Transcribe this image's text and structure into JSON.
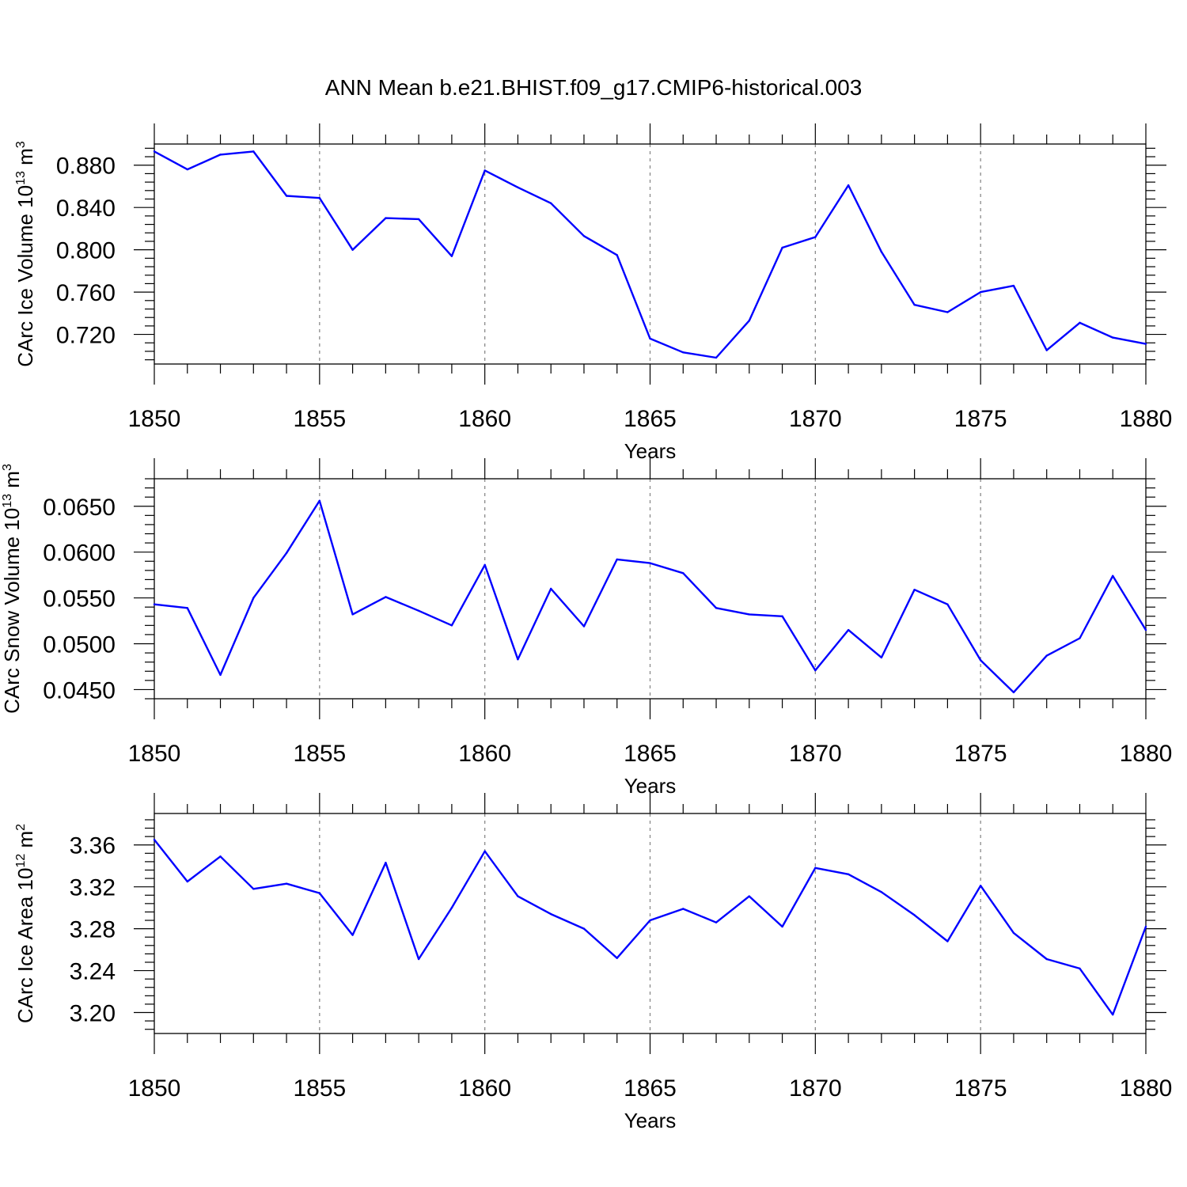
{
  "figure": {
    "title": "ANN Mean b.e21.BHIST.f09_g17.CMIP6-historical.003"
  },
  "chart_data": [
    {
      "type": "line",
      "xlabel": "Years",
      "ylabel": {
        "text": "CArc Ice Volume 10",
        "exponent": "13",
        "unit": " m",
        "unit_exponent": "3"
      },
      "xlim": [
        1850,
        1880
      ],
      "ylim": [
        0.692,
        0.9
      ],
      "x_ticks": [
        1850,
        1855,
        1860,
        1865,
        1870,
        1875,
        1880
      ],
      "y_ticks": [
        "0.720",
        "0.760",
        "0.800",
        "0.840",
        "0.880"
      ],
      "y_tick_values": [
        0.72,
        0.76,
        0.8,
        0.84,
        0.88
      ],
      "y_minor_step": 0.008,
      "line_color": "#0000ff",
      "grid": "dashed vertical lines at major x ticks",
      "x": [
        1850,
        1851,
        1852,
        1853,
        1854,
        1855,
        1856,
        1857,
        1858,
        1859,
        1860,
        1861,
        1862,
        1863,
        1864,
        1865,
        1866,
        1867,
        1868,
        1869,
        1870,
        1871,
        1872,
        1873,
        1874,
        1875,
        1876,
        1877,
        1878,
        1879,
        1880
      ],
      "values": [
        0.893,
        0.876,
        0.89,
        0.893,
        0.851,
        0.849,
        0.8,
        0.83,
        0.829,
        0.794,
        0.875,
        0.859,
        0.844,
        0.813,
        0.795,
        0.716,
        0.703,
        0.698,
        0.733,
        0.802,
        0.812,
        0.861,
        0.798,
        0.748,
        0.741,
        0.76,
        0.766,
        0.705,
        0.731,
        0.717,
        0.711
      ]
    },
    {
      "type": "line",
      "xlabel": "Years",
      "ylabel": {
        "text": "CArc Snow Volume 10",
        "exponent": "13",
        "unit": " m",
        "unit_exponent": "3"
      },
      "xlim": [
        1850,
        1880
      ],
      "ylim": [
        0.044,
        0.068
      ],
      "x_ticks": [
        1850,
        1855,
        1860,
        1865,
        1870,
        1875,
        1880
      ],
      "y_ticks": [
        "0.0450",
        "0.0500",
        "0.0550",
        "0.0600",
        "0.0650"
      ],
      "y_tick_values": [
        0.045,
        0.05,
        0.055,
        0.06,
        0.065
      ],
      "y_minor_step": 0.001,
      "line_color": "#0000ff",
      "grid": "dashed vertical lines at major x ticks",
      "x": [
        1850,
        1851,
        1852,
        1853,
        1854,
        1855,
        1856,
        1857,
        1858,
        1859,
        1860,
        1861,
        1862,
        1863,
        1864,
        1865,
        1866,
        1867,
        1868,
        1869,
        1870,
        1871,
        1872,
        1873,
        1874,
        1875,
        1876,
        1877,
        1878,
        1879,
        1880
      ],
      "values": [
        0.0543,
        0.0539,
        0.0466,
        0.055,
        0.0599,
        0.0656,
        0.0532,
        0.0551,
        0.0536,
        0.052,
        0.0586,
        0.0483,
        0.056,
        0.0519,
        0.0592,
        0.0588,
        0.0577,
        0.0539,
        0.0532,
        0.053,
        0.0471,
        0.0515,
        0.0485,
        0.0559,
        0.0543,
        0.0482,
        0.0447,
        0.0487,
        0.0506,
        0.0574,
        0.0515
      ]
    },
    {
      "type": "line",
      "xlabel": "Years",
      "ylabel": {
        "text": "CArc Ice Area 10",
        "exponent": "12",
        "unit": " m",
        "unit_exponent": "2"
      },
      "xlim": [
        1850,
        1880
      ],
      "ylim": [
        3.18,
        3.39
      ],
      "x_ticks": [
        1850,
        1855,
        1860,
        1865,
        1870,
        1875,
        1880
      ],
      "y_ticks": [
        "3.20",
        "3.24",
        "3.28",
        "3.32",
        "3.36"
      ],
      "y_tick_values": [
        3.2,
        3.24,
        3.28,
        3.32,
        3.36
      ],
      "y_minor_step": 0.008,
      "line_color": "#0000ff",
      "grid": "dashed vertical lines at major x ticks",
      "x": [
        1850,
        1851,
        1852,
        1853,
        1854,
        1855,
        1856,
        1857,
        1858,
        1859,
        1860,
        1861,
        1862,
        1863,
        1864,
        1865,
        1866,
        1867,
        1868,
        1869,
        1870,
        1871,
        1872,
        1873,
        1874,
        1875,
        1876,
        1877,
        1878,
        1879,
        1880
      ],
      "values": [
        3.365,
        3.325,
        3.349,
        3.318,
        3.323,
        3.314,
        3.274,
        3.343,
        3.251,
        3.3,
        3.354,
        3.311,
        3.294,
        3.28,
        3.252,
        3.288,
        3.299,
        3.286,
        3.311,
        3.282,
        3.338,
        3.332,
        3.315,
        3.293,
        3.268,
        3.321,
        3.276,
        3.251,
        3.242,
        3.198,
        3.282
      ]
    }
  ]
}
